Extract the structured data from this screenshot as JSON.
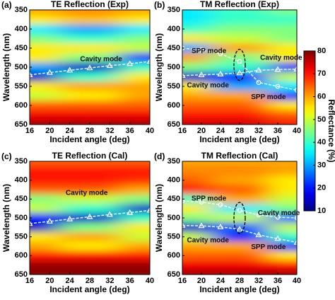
{
  "chart_data": [
    {
      "type": "heatmap",
      "panel_label": "(a)",
      "title": "TE Reflection (Exp)",
      "xlabel": "Incident angle (deg)",
      "ylabel": "Wavelength (nm)",
      "xlim": [
        16,
        40
      ],
      "ylim": [
        350,
        650
      ],
      "y_inverted": true,
      "xticks": [
        16,
        20,
        24,
        28,
        32,
        36,
        40
      ],
      "yticks": [
        350,
        400,
        450,
        500,
        550,
        600,
        650
      ],
      "x": [
        16,
        28,
        40
      ],
      "y": [
        350,
        375,
        400,
        425,
        450,
        475,
        500,
        525,
        550,
        575,
        600,
        625,
        650
      ],
      "z": [
        [
          60,
          62,
          60
        ],
        [
          55,
          58,
          55
        ],
        [
          35,
          30,
          35
        ],
        [
          45,
          40,
          45
        ],
        [
          55,
          55,
          50
        ],
        [
          55,
          45,
          20
        ],
        [
          30,
          15,
          40
        ],
        [
          15,
          40,
          55
        ],
        [
          55,
          60,
          60
        ],
        [
          50,
          55,
          60
        ],
        [
          65,
          65,
          65
        ],
        [
          72,
          72,
          72
        ],
        [
          78,
          78,
          78
        ]
      ],
      "series": [
        {
          "marker": "triangle",
          "x": [
            16,
            20,
            24,
            28,
            32,
            36,
            40
          ],
          "values": [
            520,
            514,
            508,
            502,
            496,
            491,
            485
          ]
        }
      ],
      "annotations": [
        "Cavity mode"
      ]
    },
    {
      "type": "heatmap",
      "panel_label": "(b)",
      "title": "TM Reflection (Exp)",
      "xlabel": "Incident angle (deg)",
      "ylabel": "Wavelength (nm)",
      "xlim": [
        16,
        40
      ],
      "ylim": [
        350,
        650
      ],
      "y_inverted": true,
      "xticks": [
        16,
        20,
        24,
        28,
        32,
        36,
        40
      ],
      "yticks": [
        350,
        400,
        450,
        500,
        550,
        600,
        650
      ],
      "x": [
        16,
        28,
        40
      ],
      "y": [
        350,
        375,
        400,
        425,
        450,
        475,
        500,
        525,
        550,
        575,
        600,
        625,
        650
      ],
      "z": [
        [
          35,
          40,
          45
        ],
        [
          35,
          40,
          40
        ],
        [
          40,
          45,
          45
        ],
        [
          55,
          50,
          45
        ],
        [
          30,
          60,
          55
        ],
        [
          60,
          45,
          55
        ],
        [
          45,
          40,
          20
        ],
        [
          15,
          20,
          50
        ],
        [
          55,
          30,
          35
        ],
        [
          60,
          60,
          20
        ],
        [
          65,
          65,
          55
        ],
        [
          70,
          70,
          65
        ],
        [
          75,
          75,
          72
        ]
      ],
      "series": [
        {
          "marker": "circle",
          "x": [
            16,
            20,
            24,
            28,
            32,
            36,
            40
          ],
          "values": [
            450,
            455,
            465,
            485,
            540,
            550,
            560
          ]
        },
        {
          "marker": "triangle",
          "x": [
            16,
            20,
            24,
            28,
            32,
            36,
            40
          ],
          "values": [
            522,
            520,
            518,
            515,
            508,
            506,
            505
          ]
        }
      ],
      "annotations": [
        "SPP mode",
        "Cavity mode",
        "Cavity mode",
        "SPP mode"
      ]
    },
    {
      "type": "heatmap",
      "panel_label": "(c)",
      "title": "TE Reflection (Cal)",
      "xlabel": "Incident angle (deg)",
      "ylabel": "Wavelength (nm)",
      "xlim": [
        16,
        40
      ],
      "ylim": [
        350,
        650
      ],
      "y_inverted": true,
      "xticks": [
        16,
        20,
        24,
        28,
        32,
        36,
        40
      ],
      "yticks": [
        350,
        400,
        450,
        500,
        550,
        600,
        650
      ],
      "x": [
        16,
        28,
        40
      ],
      "y": [
        350,
        375,
        400,
        425,
        450,
        475,
        500,
        525,
        550,
        575,
        600,
        625,
        650
      ],
      "z": [
        [
          65,
          65,
          65
        ],
        [
          70,
          70,
          70
        ],
        [
          70,
          70,
          68
        ],
        [
          65,
          65,
          60
        ],
        [
          45,
          50,
          45
        ],
        [
          50,
          40,
          15
        ],
        [
          20,
          15,
          40
        ],
        [
          15,
          45,
          55
        ],
        [
          55,
          60,
          50
        ],
        [
          60,
          55,
          60
        ],
        [
          70,
          70,
          70
        ],
        [
          78,
          78,
          78
        ],
        [
          80,
          80,
          80
        ]
      ],
      "series": [
        {
          "marker": "triangle",
          "x": [
            16,
            20,
            24,
            28,
            32,
            36,
            40
          ],
          "values": [
            515,
            509,
            503,
            497,
            491,
            486,
            480
          ]
        }
      ],
      "annotations": [
        "Cavity mode"
      ]
    },
    {
      "type": "heatmap",
      "panel_label": "(d)",
      "title": "TM Reflection (Cal)",
      "xlabel": "Incident angle (deg)",
      "ylabel": "Wavelength (nm)",
      "xlim": [
        16,
        40
      ],
      "ylim": [
        350,
        650
      ],
      "y_inverted": true,
      "xticks": [
        16,
        20,
        24,
        28,
        32,
        36,
        40
      ],
      "yticks": [
        350,
        400,
        450,
        500,
        550,
        600,
        650
      ],
      "x": [
        16,
        28,
        40
      ],
      "y": [
        350,
        375,
        400,
        425,
        450,
        475,
        500,
        525,
        550,
        575,
        600,
        625,
        650
      ],
      "z": [
        [
          60,
          60,
          60
        ],
        [
          62,
          62,
          60
        ],
        [
          65,
          60,
          55
        ],
        [
          70,
          65,
          55
        ],
        [
          40,
          60,
          50
        ],
        [
          55,
          35,
          45
        ],
        [
          45,
          50,
          25
        ],
        [
          15,
          25,
          50
        ],
        [
          50,
          20,
          40
        ],
        [
          60,
          60,
          20
        ],
        [
          65,
          65,
          55
        ],
        [
          72,
          72,
          70
        ],
        [
          78,
          78,
          78
        ]
      ],
      "series": [
        {
          "marker": "circle",
          "x": [
            16,
            20,
            24,
            28,
            32,
            36,
            40
          ],
          "values": [
            455,
            458,
            465,
            480,
            492,
            498,
            500
          ]
        },
        {
          "marker": "triangle",
          "x": [
            16,
            20,
            24,
            28,
            32,
            36,
            40
          ],
          "values": [
            520,
            521,
            524,
            530,
            545,
            555,
            565
          ]
        }
      ],
      "annotations": [
        "SPP mode",
        "Cavity mode",
        "Cavity mode",
        "SPP mode"
      ]
    },
    {
      "type": "colorbar",
      "label": "Reflectance (%)",
      "colormap": "jet",
      "lim": [
        10,
        80
      ],
      "ticks": [
        10,
        20,
        30,
        40,
        50,
        60,
        70,
        80
      ]
    }
  ]
}
